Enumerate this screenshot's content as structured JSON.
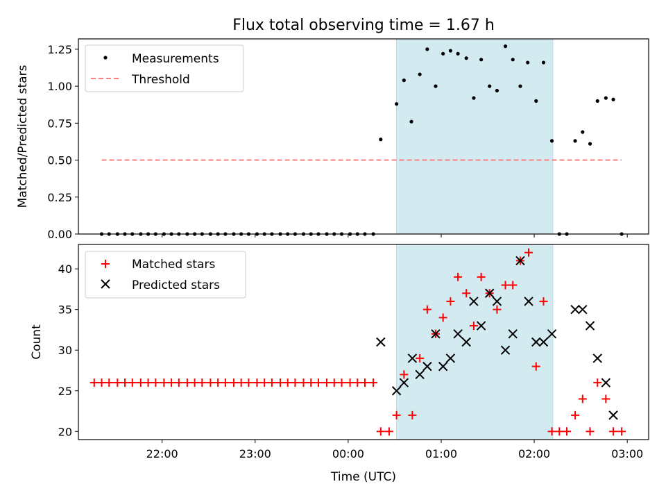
{
  "chart_data": {
    "title": "Flux total observing time = 1.67 h",
    "xlabel": "Time (UTC)",
    "x_tick_labels": [
      "22:00",
      "23:00",
      "00:00",
      "01:00",
      "02:00",
      "03:00"
    ],
    "x_tick_hours": [
      22,
      23,
      24,
      25,
      26,
      27
    ],
    "xlim_hours": [
      21.1,
      27.23
    ],
    "observing_window_hours": [
      24.52,
      26.2
    ],
    "window_color": "#d3eaf0",
    "panels": [
      {
        "type": "scatter",
        "ylabel": "Matched/Predicted stars",
        "ylim": [
          0,
          1.32
        ],
        "y_ticks": [
          0,
          0.25,
          0.5,
          0.75,
          1.0,
          1.25
        ],
        "y_tick_labels": [
          "0.00",
          "0.25",
          "0.50",
          "0.75",
          "1.00",
          "1.25"
        ],
        "legend": {
          "position": "upper-left",
          "entries": [
            "Measurements",
            "Threshold"
          ]
        },
        "series": [
          {
            "name": "Measurements",
            "marker": "dot",
            "color": "#000000",
            "points": [
              [
                21.35,
                0
              ],
              [
                21.43,
                0
              ],
              [
                21.52,
                0
              ],
              [
                21.6,
                0
              ],
              [
                21.68,
                0
              ],
              [
                21.77,
                0
              ],
              [
                21.85,
                0
              ],
              [
                21.93,
                0
              ],
              [
                22.02,
                0
              ],
              [
                22.1,
                0
              ],
              [
                22.18,
                0
              ],
              [
                22.27,
                0
              ],
              [
                22.35,
                0
              ],
              [
                22.43,
                0
              ],
              [
                22.52,
                0
              ],
              [
                22.6,
                0
              ],
              [
                22.68,
                0
              ],
              [
                22.77,
                0
              ],
              [
                22.85,
                0
              ],
              [
                22.93,
                0
              ],
              [
                23.02,
                0
              ],
              [
                23.1,
                0
              ],
              [
                23.18,
                0
              ],
              [
                23.27,
                0
              ],
              [
                23.35,
                0
              ],
              [
                23.43,
                0
              ],
              [
                23.52,
                0
              ],
              [
                23.6,
                0
              ],
              [
                23.68,
                0
              ],
              [
                23.77,
                0
              ],
              [
                23.85,
                0
              ],
              [
                23.93,
                0
              ],
              [
                24.02,
                0
              ],
              [
                24.1,
                0
              ],
              [
                24.18,
                0
              ],
              [
                24.27,
                0
              ],
              [
                24.35,
                0.64
              ],
              [
                24.52,
                0.88
              ],
              [
                24.6,
                1.04
              ],
              [
                24.68,
                0.76
              ],
              [
                24.77,
                1.08
              ],
              [
                24.85,
                1.25
              ],
              [
                24.94,
                1.0
              ],
              [
                25.02,
                1.22
              ],
              [
                25.1,
                1.24
              ],
              [
                25.18,
                1.22
              ],
              [
                25.27,
                1.19
              ],
              [
                25.35,
                0.92
              ],
              [
                25.43,
                1.18
              ],
              [
                25.52,
                1.0
              ],
              [
                25.6,
                0.97
              ],
              [
                25.69,
                1.27
              ],
              [
                25.77,
                1.18
              ],
              [
                25.85,
                1.0
              ],
              [
                25.93,
                1.16
              ],
              [
                26.02,
                0.9
              ],
              [
                26.1,
                1.16
              ],
              [
                26.19,
                0.63
              ],
              [
                26.27,
                0
              ],
              [
                26.35,
                0
              ],
              [
                26.44,
                0.63
              ],
              [
                26.52,
                0.69
              ],
              [
                26.6,
                0.61
              ],
              [
                26.68,
                0.9
              ],
              [
                26.77,
                0.92
              ],
              [
                26.85,
                0.91
              ],
              [
                26.94,
                0
              ]
            ]
          },
          {
            "name": "Threshold",
            "marker": "dashed-line",
            "color": "#ff7f7f",
            "y": 0.5,
            "x_range": [
              21.35,
              26.94
            ]
          }
        ]
      },
      {
        "type": "scatter",
        "ylabel": "Count",
        "ylim": [
          19,
          43
        ],
        "y_ticks": [
          20,
          25,
          30,
          35,
          40
        ],
        "y_tick_labels": [
          "20",
          "25",
          "30",
          "35",
          "40"
        ],
        "legend": {
          "position": "upper-left",
          "entries": [
            "Matched stars",
            "Predicted stars"
          ]
        },
        "series": [
          {
            "name": "Matched stars",
            "marker": "plus",
            "color": "#ff0000",
            "points": [
              [
                21.27,
                26
              ],
              [
                21.35,
                26
              ],
              [
                21.43,
                26
              ],
              [
                21.52,
                26
              ],
              [
                21.6,
                26
              ],
              [
                21.68,
                26
              ],
              [
                21.77,
                26
              ],
              [
                21.85,
                26
              ],
              [
                21.93,
                26
              ],
              [
                22.02,
                26
              ],
              [
                22.1,
                26
              ],
              [
                22.18,
                26
              ],
              [
                22.27,
                26
              ],
              [
                22.35,
                26
              ],
              [
                22.43,
                26
              ],
              [
                22.52,
                26
              ],
              [
                22.6,
                26
              ],
              [
                22.68,
                26
              ],
              [
                22.77,
                26
              ],
              [
                22.85,
                26
              ],
              [
                22.93,
                26
              ],
              [
                23.02,
                26
              ],
              [
                23.1,
                26
              ],
              [
                23.18,
                26
              ],
              [
                23.27,
                26
              ],
              [
                23.35,
                26
              ],
              [
                23.43,
                26
              ],
              [
                23.52,
                26
              ],
              [
                23.6,
                26
              ],
              [
                23.68,
                26
              ],
              [
                23.77,
                26
              ],
              [
                23.85,
                26
              ],
              [
                23.93,
                26
              ],
              [
                24.02,
                26
              ],
              [
                24.1,
                26
              ],
              [
                24.18,
                26
              ],
              [
                24.27,
                26
              ],
              [
                24.35,
                20
              ],
              [
                24.44,
                20
              ],
              [
                24.52,
                22
              ],
              [
                24.6,
                27
              ],
              [
                24.69,
                22
              ],
              [
                24.77,
                29
              ],
              [
                24.85,
                35
              ],
              [
                24.94,
                32
              ],
              [
                25.02,
                34
              ],
              [
                25.1,
                36
              ],
              [
                25.18,
                39
              ],
              [
                25.27,
                37
              ],
              [
                25.35,
                33
              ],
              [
                25.43,
                39
              ],
              [
                25.52,
                37
              ],
              [
                25.6,
                35
              ],
              [
                25.69,
                38
              ],
              [
                25.77,
                38
              ],
              [
                25.85,
                41
              ],
              [
                25.94,
                42
              ],
              [
                26.02,
                28
              ],
              [
                26.1,
                36
              ],
              [
                26.19,
                20
              ],
              [
                26.27,
                20
              ],
              [
                26.35,
                20
              ],
              [
                26.44,
                22
              ],
              [
                26.52,
                24
              ],
              [
                26.6,
                20
              ],
              [
                26.68,
                26
              ],
              [
                26.77,
                24
              ],
              [
                26.85,
                20
              ],
              [
                26.94,
                20
              ]
            ]
          },
          {
            "name": "Predicted stars",
            "marker": "x",
            "color": "#000000",
            "points": [
              [
                24.35,
                31
              ],
              [
                24.52,
                25
              ],
              [
                24.6,
                26
              ],
              [
                24.69,
                29
              ],
              [
                24.77,
                27
              ],
              [
                24.85,
                28
              ],
              [
                24.94,
                32
              ],
              [
                25.02,
                28
              ],
              [
                25.1,
                29
              ],
              [
                25.18,
                32
              ],
              [
                25.27,
                31
              ],
              [
                25.35,
                36
              ],
              [
                25.43,
                33
              ],
              [
                25.52,
                37
              ],
              [
                25.6,
                36
              ],
              [
                25.69,
                30
              ],
              [
                25.77,
                32
              ],
              [
                25.85,
                41
              ],
              [
                25.94,
                36
              ],
              [
                26.02,
                31
              ],
              [
                26.1,
                31
              ],
              [
                26.19,
                32
              ],
              [
                26.44,
                35
              ],
              [
                26.52,
                35
              ],
              [
                26.6,
                33
              ],
              [
                26.68,
                29
              ],
              [
                26.77,
                26
              ],
              [
                26.85,
                22
              ]
            ]
          }
        ]
      }
    ]
  }
}
